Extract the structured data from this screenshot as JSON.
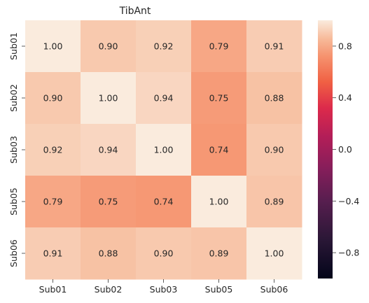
{
  "chart_data": {
    "type": "heatmap",
    "title": "TibAnt",
    "xlabel": "",
    "ylabel": "",
    "x_categories": [
      "Sub01",
      "Sub02",
      "Sub03",
      "Sub05",
      "Sub06"
    ],
    "y_categories": [
      "Sub01",
      "Sub02",
      "Sub03",
      "Sub05",
      "Sub06"
    ],
    "values": [
      [
        1.0,
        0.9,
        0.92,
        0.79,
        0.91
      ],
      [
        0.9,
        1.0,
        0.94,
        0.75,
        0.88
      ],
      [
        0.92,
        0.94,
        1.0,
        0.74,
        0.9
      ],
      [
        0.79,
        0.75,
        0.74,
        1.0,
        0.89
      ],
      [
        0.91,
        0.88,
        0.9,
        0.89,
        1.0
      ]
    ],
    "value_format": "0.00",
    "colorbar": {
      "range": [
        -1,
        1
      ],
      "ticks": [
        0.8,
        0.4,
        0.0,
        -0.4,
        -0.8
      ],
      "tick_labels": [
        "0.8",
        "0.4",
        "0.0",
        "−0.4",
        "−0.8"
      ],
      "colormap": "rocket"
    }
  }
}
